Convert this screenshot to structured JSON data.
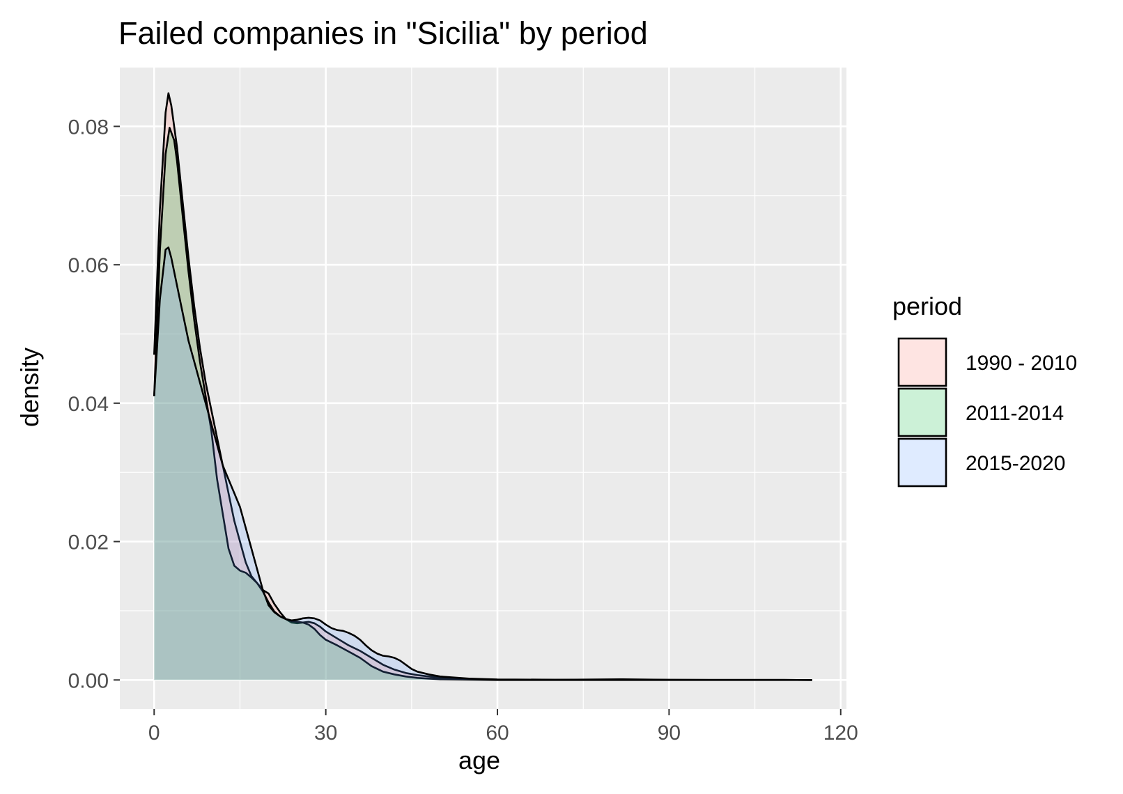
{
  "chart_data": {
    "type": "area",
    "title": "Failed companies in \"Sicilia\" by period",
    "xlabel": "age",
    "ylabel": "density",
    "xlim": [
      -6,
      121
    ],
    "ylim": [
      -0.0042,
      0.0885
    ],
    "x_ticks": [
      0,
      30,
      60,
      90,
      120
    ],
    "x_tick_labels": [
      "0",
      "30",
      "60",
      "90",
      "120"
    ],
    "y_ticks": [
      0,
      0.02,
      0.04,
      0.06,
      0.08
    ],
    "y_tick_labels": [
      "0.00",
      "0.02",
      "0.04",
      "0.06",
      "0.08"
    ],
    "grid": true,
    "legend": {
      "title": "period",
      "position": "right"
    },
    "series": [
      {
        "name": "1990 - 2010",
        "color": "#f8766d",
        "points": [
          [
            0,
            0.047
          ],
          [
            1,
            0.068
          ],
          [
            2,
            0.082
          ],
          [
            2.5,
            0.0848
          ],
          [
            3,
            0.083
          ],
          [
            4,
            0.077
          ],
          [
            5,
            0.069
          ],
          [
            6,
            0.061
          ],
          [
            7,
            0.054
          ],
          [
            8,
            0.048
          ],
          [
            9,
            0.043
          ],
          [
            10,
            0.039
          ],
          [
            11,
            0.035
          ],
          [
            12,
            0.031
          ],
          [
            13,
            0.027
          ],
          [
            14,
            0.023
          ],
          [
            15,
            0.02
          ],
          [
            16,
            0.017
          ],
          [
            17,
            0.015
          ],
          [
            18,
            0.014
          ],
          [
            19,
            0.013
          ],
          [
            20,
            0.0125
          ],
          [
            21,
            0.011
          ],
          [
            22,
            0.0098
          ],
          [
            23,
            0.0088
          ],
          [
            24,
            0.0083
          ],
          [
            25,
            0.0082
          ],
          [
            26,
            0.0083
          ],
          [
            27,
            0.0084
          ],
          [
            28,
            0.0082
          ],
          [
            29,
            0.0077
          ],
          [
            30,
            0.007
          ],
          [
            32,
            0.006
          ],
          [
            34,
            0.005
          ],
          [
            36,
            0.0042
          ],
          [
            38,
            0.0032
          ],
          [
            40,
            0.0022
          ],
          [
            42,
            0.0015
          ],
          [
            44,
            0.001
          ],
          [
            46,
            0.0007
          ],
          [
            48,
            0.0005
          ],
          [
            50,
            0.0003
          ],
          [
            55,
            0.0001
          ],
          [
            60,
            5e-05
          ],
          [
            70,
            2e-05
          ],
          [
            82,
            0.0001
          ],
          [
            90,
            2e-05
          ],
          [
            100,
            1e-05
          ],
          [
            110,
            1e-05
          ],
          [
            115,
            0
          ]
        ]
      },
      {
        "name": "2011-2014",
        "color": "#00ba38",
        "points": [
          [
            0,
            0.041
          ],
          [
            1,
            0.062
          ],
          [
            2,
            0.076
          ],
          [
            2.7,
            0.0798
          ],
          [
            3.5,
            0.078
          ],
          [
            4,
            0.075
          ],
          [
            5,
            0.067
          ],
          [
            6,
            0.059
          ],
          [
            7,
            0.052
          ],
          [
            8,
            0.046
          ],
          [
            9,
            0.041
          ],
          [
            10,
            0.036
          ],
          [
            11,
            0.029
          ],
          [
            12,
            0.024
          ],
          [
            13,
            0.019
          ],
          [
            14,
            0.0165
          ],
          [
            15,
            0.0158
          ],
          [
            16,
            0.0155
          ],
          [
            17,
            0.0148
          ],
          [
            18,
            0.014
          ],
          [
            19,
            0.0128
          ],
          [
            20,
            0.0112
          ],
          [
            21,
            0.0099
          ],
          [
            22,
            0.0092
          ],
          [
            23,
            0.0088
          ],
          [
            24,
            0.0085
          ],
          [
            25,
            0.0084
          ],
          [
            26,
            0.0083
          ],
          [
            27,
            0.008
          ],
          [
            28,
            0.0074
          ],
          [
            29,
            0.0065
          ],
          [
            30,
            0.0058
          ],
          [
            32,
            0.005
          ],
          [
            34,
            0.0041
          ],
          [
            36,
            0.0032
          ],
          [
            38,
            0.002
          ],
          [
            40,
            0.0012
          ],
          [
            42,
            0.0008
          ],
          [
            44,
            0.0005
          ],
          [
            46,
            0.0003
          ],
          [
            48,
            0.0002
          ],
          [
            50,
            0.0001
          ],
          [
            55,
            5e-05
          ],
          [
            60,
            0
          ],
          [
            80,
            0
          ],
          [
            115,
            0
          ]
        ]
      },
      {
        "name": "2015-2020",
        "color": "#619cff",
        "points": [
          [
            0,
            0.041
          ],
          [
            1,
            0.055
          ],
          [
            2,
            0.0622
          ],
          [
            2.5,
            0.0625
          ],
          [
            3,
            0.061
          ],
          [
            4,
            0.057
          ],
          [
            5,
            0.053
          ],
          [
            6,
            0.049
          ],
          [
            7,
            0.046
          ],
          [
            8,
            0.043
          ],
          [
            9,
            0.04
          ],
          [
            10,
            0.037
          ],
          [
            11,
            0.034
          ],
          [
            12,
            0.031
          ],
          [
            13,
            0.029
          ],
          [
            14,
            0.027
          ],
          [
            15,
            0.025
          ],
          [
            16,
            0.022
          ],
          [
            17,
            0.019
          ],
          [
            18,
            0.016
          ],
          [
            19,
            0.013
          ],
          [
            20,
            0.0108
          ],
          [
            21,
            0.0098
          ],
          [
            22,
            0.0092
          ],
          [
            23,
            0.0088
          ],
          [
            24,
            0.0086
          ],
          [
            25,
            0.0087
          ],
          [
            26,
            0.0089
          ],
          [
            27,
            0.009
          ],
          [
            28,
            0.0089
          ],
          [
            29,
            0.0086
          ],
          [
            30,
            0.008
          ],
          [
            31,
            0.0075
          ],
          [
            32,
            0.0072
          ],
          [
            33,
            0.0071
          ],
          [
            34,
            0.0068
          ],
          [
            35,
            0.0064
          ],
          [
            36,
            0.0058
          ],
          [
            37,
            0.005
          ],
          [
            38,
            0.0043
          ],
          [
            39,
            0.0038
          ],
          [
            40,
            0.0035
          ],
          [
            41,
            0.0034
          ],
          [
            42,
            0.0032
          ],
          [
            43,
            0.0028
          ],
          [
            44,
            0.0022
          ],
          [
            45,
            0.0016
          ],
          [
            46,
            0.0012
          ],
          [
            48,
            0.0008
          ],
          [
            50,
            0.0005
          ],
          [
            55,
            0.0002
          ],
          [
            60,
            8e-05
          ],
          [
            70,
            4e-05
          ],
          [
            80,
            3e-05
          ],
          [
            90,
            2e-05
          ],
          [
            100,
            1e-05
          ],
          [
            110,
            1e-05
          ],
          [
            115,
            0
          ]
        ]
      }
    ]
  }
}
